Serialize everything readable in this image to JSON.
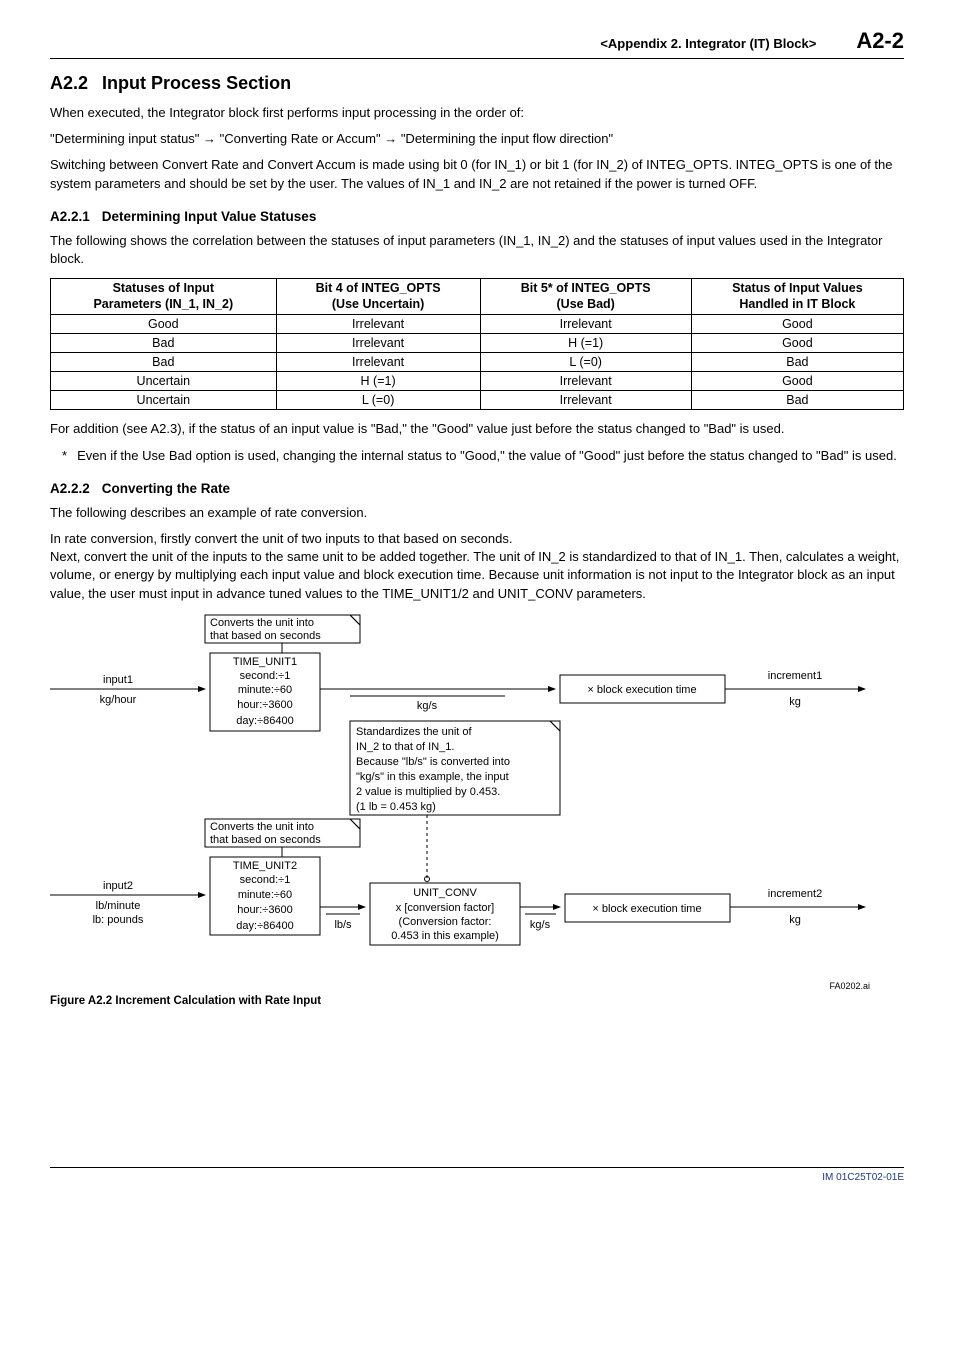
{
  "header": {
    "appendix": "<Appendix 2.  Integrator (IT) Block>",
    "pageNum": "A2-2"
  },
  "section": {
    "number": "A2.2",
    "title": "Input Process Section",
    "para1": "When executed, the Integrator block first performs input processing in the order of:",
    "para2": "\"Determining input status\" → \"Converting Rate or Accum\" → \"Determining the input flow direction\"",
    "para3": "Switching between Convert Rate and Convert Accum is made using bit 0 (for IN_1) or bit 1 (for IN_2) of INTEG_OPTS. INTEG_OPTS is one of the system parameters and should be set by the user. The values of IN_1 and IN_2 are not retained if the power is turned OFF."
  },
  "sub1": {
    "number": "A2.2.1",
    "title": "Determining Input Value Statuses",
    "para": "The following shows the correlation between the statuses of input parameters (IN_1, IN_2) and the statuses of input values used in the Integrator block."
  },
  "table": {
    "headers": [
      "Statuses of Input\nParameters (IN_1, IN_2)",
      "Bit 4 of INTEG_OPTS\n(Use Uncertain)",
      "Bit 5* of INTEG_OPTS\n(Use Bad)",
      "Status of Input Values\nHandled in IT Block"
    ],
    "rows": [
      [
        "Good",
        "Irrelevant",
        "Irrelevant",
        "Good"
      ],
      [
        "Bad",
        "Irrelevant",
        "H (=1)",
        "Good"
      ],
      [
        "Bad",
        "Irrelevant",
        "L (=0)",
        "Bad"
      ],
      [
        "Uncertain",
        "H (=1)",
        "Irrelevant",
        "Good"
      ],
      [
        "Uncertain",
        "L (=0)",
        "Irrelevant",
        "Bad"
      ]
    ]
  },
  "afterTable": {
    "para": "For addition (see A2.3), if the status of an input value is \"Bad,\" the \"Good\" value just before the status changed to \"Bad\" is used.",
    "footnoteMark": "*",
    "footnoteText": "Even if the Use Bad option is used, changing the internal status to \"Good,\" the value of \"Good\" just before the status changed to \"Bad\" is used."
  },
  "sub2": {
    "number": "A2.2.2",
    "title": "Converting the Rate",
    "para1": "The following describes an example of rate conversion.",
    "para2": "In rate conversion, firstly convert the unit of two inputs to that based on seconds.\nNext, convert the unit of the inputs to the same unit to be added together. The unit of IN_2 is standardized to that of IN_1. Then, calculates a weight, volume, or energy by multiplying each input value and block execution time. Because unit information is not input to the Integrator block as an input value, the user must input in advance tuned values to the TIME_UNIT1/2 and UNIT_CONV parameters."
  },
  "diagram": {
    "fileRef": "FA0202.ai",
    "noteTop1": "Converts the unit into",
    "noteTop1b": "that based on seconds",
    "noteTop2": "Converts the unit into",
    "noteTop2b": "that based on seconds",
    "input1": "input1",
    "input1unit": "kg/hour",
    "input2": "input2",
    "input2unitA": "lb/minute",
    "input2unitB": "lb: pounds",
    "timeUnit1": {
      "title": "TIME_UNIT1",
      "l1": "second:÷1",
      "l2": "minute:÷60",
      "l3": "hour:÷3600",
      "l4": "day:÷86400"
    },
    "timeUnit2": {
      "title": "TIME_UNIT2",
      "l1": "second:÷1",
      "l2": "minute:÷60",
      "l3": "hour:÷3600",
      "l4": "day:÷86400"
    },
    "midUnit1": "kg/s",
    "midUnit2a": "lb/s",
    "midUnit2b": "kg/s",
    "standardBox": {
      "l1": "Standardizes the unit of",
      "l2": "IN_2 to that of IN_1.",
      "l3": "Because \"lb/s\" is converted into",
      "l4": "\"kg/s\" in this example, the input",
      "l5": "2 value is multiplied by 0.453.",
      "l6": "(1 lb = 0.453 kg)"
    },
    "unitConv": {
      "title": "UNIT_CONV",
      "l1": "x [conversion factor]",
      "l2": "(Conversion factor:",
      "l3": "0.453 in this example)"
    },
    "blockExec": "× block execution time",
    "increment1": "increment1",
    "increment1unit": "kg",
    "increment2": "increment2",
    "increment2unit": "kg"
  },
  "figureCaption": "Figure A2.2    Increment Calculation with Rate Input",
  "footer": "IM 01C25T02-01E"
}
